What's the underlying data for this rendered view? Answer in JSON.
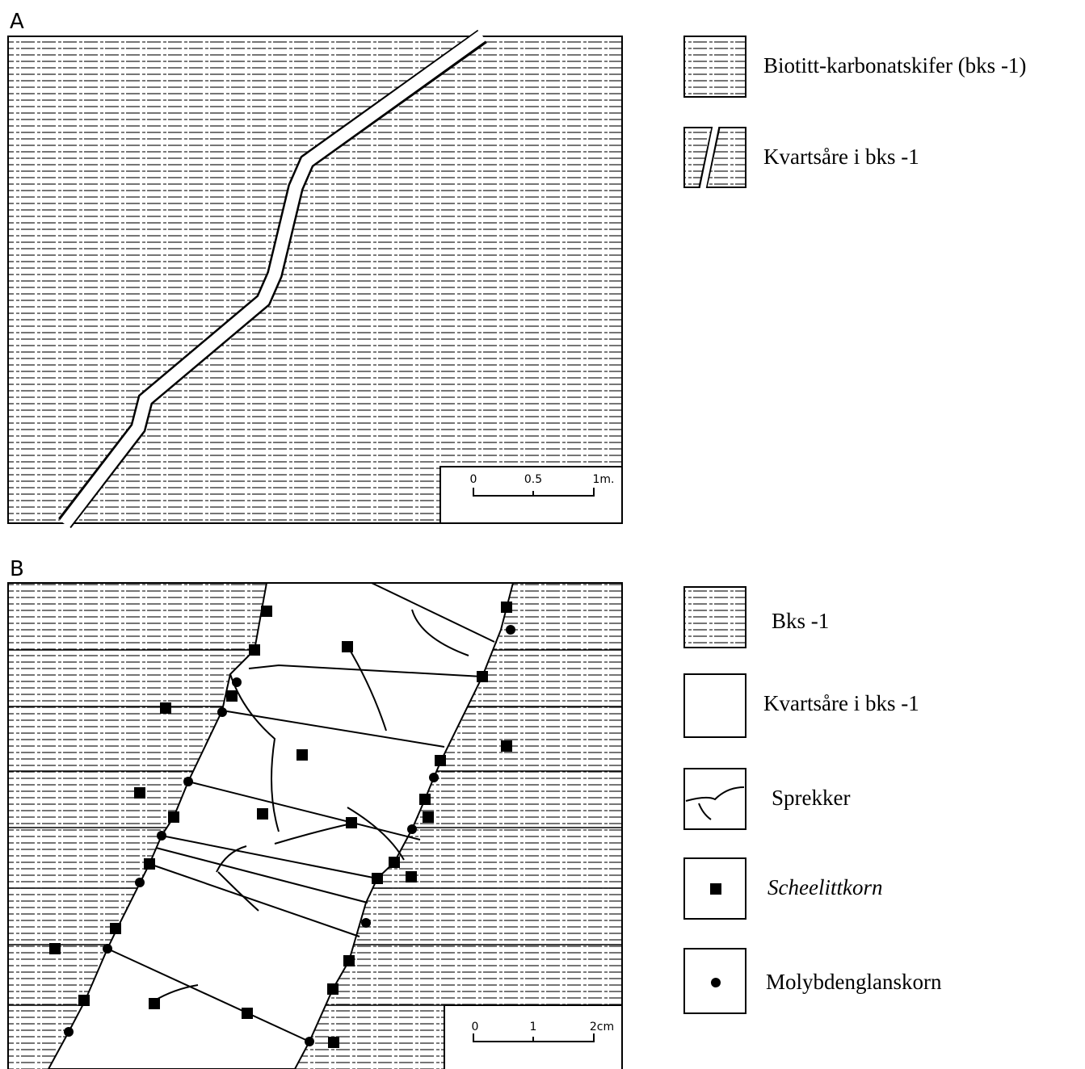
{
  "panel_a": {
    "label": "A",
    "scale": [
      "0",
      "0.5",
      "1m."
    ]
  },
  "legend_a": [
    "Biotitt-karbonatskifer (bks -1)",
    "Kvartsåre i bks -1"
  ],
  "panel_b": {
    "label": "B",
    "scale": [
      "0",
      "1",
      "2cm"
    ]
  },
  "legend_b": [
    "Bks -1",
    "Kvartsåre i bks -1",
    "Sprekker",
    "Scheelittkorn",
    "Molybdenglanskorn"
  ]
}
